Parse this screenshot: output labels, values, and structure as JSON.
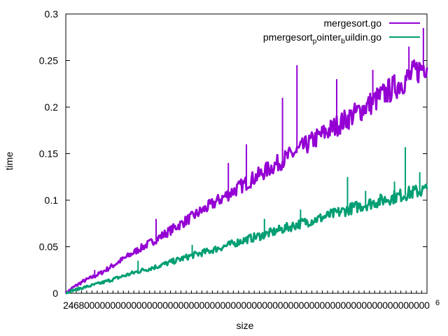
{
  "chart_data": {
    "type": "line",
    "xlabel": "size",
    "ylabel": "time",
    "xlim": [
      0,
      1000000
    ],
    "ylim": [
      0,
      0.3
    ],
    "x_tick_labels": [
      "2",
      "4",
      "6",
      "8",
      "0",
      "0",
      "0",
      "0",
      "0",
      "0",
      "0",
      "0",
      "0",
      "0",
      "0",
      "0",
      "0",
      "0",
      "0",
      "0",
      "0",
      "0",
      "0",
      "0",
      "0",
      "0",
      "0",
      "0",
      "0",
      "0",
      "0",
      "0",
      "0",
      "0",
      "0",
      "0",
      "0",
      "0",
      "0",
      "0",
      "0",
      "0",
      "0",
      "0",
      "0",
      "0",
      "0",
      "0",
      "0",
      "0",
      "0",
      "0",
      "0",
      "0",
      "0",
      "0",
      "0",
      "0",
      "0",
      "0",
      "0",
      "0",
      "0",
      "0",
      "0",
      "0",
      "0",
      "0",
      "0",
      "0"
    ],
    "x_axis_exponent": "6",
    "y_ticks": [
      0,
      0.05,
      0.1,
      0.15,
      0.2,
      0.25,
      0.3
    ],
    "y_tick_labels": [
      "0",
      "0.05",
      "0.1",
      "0.15",
      "0.2",
      "0.25",
      "0.3"
    ],
    "grid": false,
    "legend_position": "top-right",
    "series": [
      {
        "name": "mergesort.go",
        "color": "#9400d3",
        "x": [
          0,
          20000,
          50000,
          80000,
          100000,
          150000,
          200000,
          250000,
          300000,
          350000,
          400000,
          450000,
          500000,
          550000,
          600000,
          650000,
          700000,
          750000,
          800000,
          850000,
          900000,
          950000,
          1000000
        ],
        "y": [
          0,
          0.006,
          0.013,
          0.018,
          0.022,
          0.034,
          0.046,
          0.057,
          0.069,
          0.081,
          0.093,
          0.105,
          0.117,
          0.129,
          0.141,
          0.153,
          0.166,
          0.178,
          0.19,
          0.203,
          0.216,
          0.229,
          0.244
        ],
        "spikes": [
          [
            80000,
            0.025
          ],
          [
            250000,
            0.08
          ],
          [
            450000,
            0.14
          ],
          [
            500000,
            0.16
          ],
          [
            600000,
            0.21
          ],
          [
            640000,
            0.245
          ],
          [
            750000,
            0.23
          ],
          [
            850000,
            0.24
          ],
          [
            950000,
            0.265
          ],
          [
            990000,
            0.285
          ]
        ]
      },
      {
        "name": "pmergesort_pointer_buildin.go",
        "name_main": "pmergesort",
        "name_sub1": "p",
        "name_mid": "ointer",
        "name_sub2": "b",
        "name_end": "uildin.go",
        "color": "#009e73",
        "x": [
          0,
          20000,
          50000,
          80000,
          100000,
          150000,
          200000,
          250000,
          300000,
          350000,
          400000,
          450000,
          500000,
          550000,
          600000,
          650000,
          700000,
          750000,
          800000,
          850000,
          900000,
          950000,
          1000000
        ],
        "y": [
          0,
          0.003,
          0.006,
          0.009,
          0.011,
          0.017,
          0.023,
          0.028,
          0.034,
          0.04,
          0.045,
          0.051,
          0.057,
          0.062,
          0.068,
          0.074,
          0.079,
          0.085,
          0.091,
          0.096,
          0.101,
          0.106,
          0.11
        ],
        "spikes": [
          [
            200000,
            0.035
          ],
          [
            350000,
            0.052
          ],
          [
            550000,
            0.08
          ],
          [
            650000,
            0.09
          ],
          [
            780000,
            0.125
          ],
          [
            830000,
            0.11
          ],
          [
            910000,
            0.12
          ],
          [
            940000,
            0.157
          ],
          [
            980000,
            0.13
          ]
        ]
      }
    ]
  }
}
